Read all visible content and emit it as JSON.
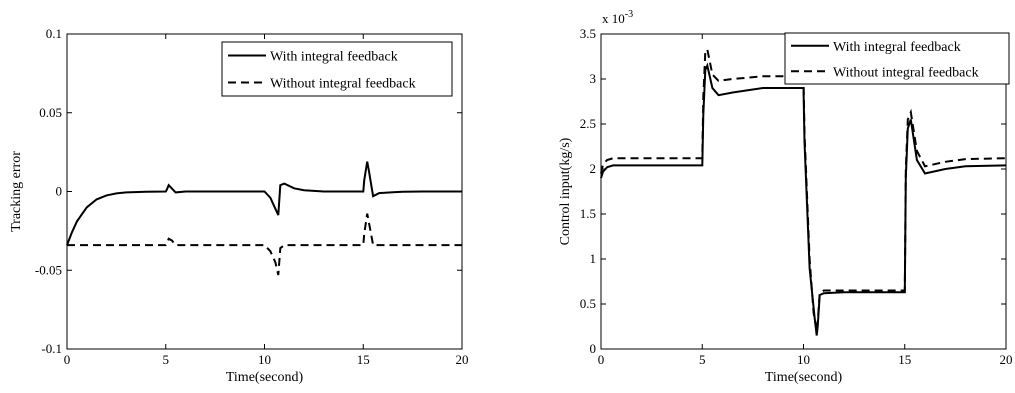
{
  "chart_data": [
    {
      "type": "line",
      "title": "",
      "xlabel": "Time(second)",
      "ylabel": "Tracking error",
      "xlim": [
        0,
        20
      ],
      "ylim": [
        -0.1,
        0.1
      ],
      "x_ticks": [
        "0",
        "5",
        "10",
        "15",
        "20"
      ],
      "y_ticks": [
        "-0.1",
        "-0.05",
        "0",
        "0.05",
        "0.1"
      ],
      "x_tick_values": [
        0,
        5,
        10,
        15,
        20
      ],
      "y_tick_values": [
        -0.1,
        -0.05,
        0,
        0.05,
        0.1
      ],
      "grid": false,
      "legend_position": "top-right",
      "series": [
        {
          "name": "With integral feedback",
          "style": "solid",
          "x": [
            0,
            0.25,
            0.5,
            1,
            1.5,
            2,
            2.5,
            3,
            4,
            5,
            5.05,
            5.15,
            5.3,
            5.5,
            6,
            8,
            10,
            10.3,
            10.55,
            10.7,
            10.8,
            11,
            11.5,
            12,
            13,
            15,
            15.05,
            15.2,
            15.3,
            15.5,
            15.8,
            16.5,
            17,
            18,
            20
          ],
          "y": [
            -0.034,
            -0.026,
            -0.019,
            -0.01,
            -0.005,
            -0.0025,
            -0.0012,
            -0.0006,
            -0.0001,
            0,
            0.001,
            0.004,
            0.002,
            -0.0006,
            0,
            0,
            0,
            -0.004,
            -0.011,
            -0.015,
            0.004,
            0.005,
            0.002,
            0.0008,
            0,
            0,
            0.007,
            0.019,
            0.012,
            -0.003,
            -0.001,
            -0.0005,
            -0.0002,
            0,
            0
          ]
        },
        {
          "name": "Without integral feedback",
          "style": "dashed",
          "x": [
            0,
            5,
            5.05,
            5.15,
            5.3,
            5.5,
            10,
            10.3,
            10.55,
            10.7,
            10.8,
            11,
            15,
            15.05,
            15.2,
            15.35,
            15.5,
            20
          ],
          "y": [
            -0.034,
            -0.034,
            -0.033,
            -0.03,
            -0.031,
            -0.034,
            -0.034,
            -0.038,
            -0.045,
            -0.053,
            -0.036,
            -0.034,
            -0.034,
            -0.027,
            -0.014,
            -0.024,
            -0.034,
            -0.034
          ]
        }
      ]
    },
    {
      "type": "line",
      "title": "",
      "xlabel": "Time(second)",
      "ylabel": "Control input(kg/s)",
      "y_multiplier_text": "x 10",
      "y_multiplier_exponent": "-3",
      "xlim": [
        0,
        20
      ],
      "ylim": [
        0,
        3.5
      ],
      "x_ticks": [
        "0",
        "5",
        "10",
        "15",
        "20"
      ],
      "y_ticks": [
        "0",
        "0.5",
        "1",
        "1.5",
        "2",
        "2.5",
        "3",
        "3.5"
      ],
      "x_tick_values": [
        0,
        5,
        10,
        15,
        20
      ],
      "y_tick_values": [
        0,
        0.5,
        1,
        1.5,
        2,
        2.5,
        3,
        3.5
      ],
      "grid": false,
      "legend_position": "top-right",
      "series": [
        {
          "name": "With integral feedback",
          "style": "solid",
          "x": [
            0,
            0.1,
            0.3,
            0.6,
            1,
            5,
            5.05,
            5.15,
            5.25,
            5.5,
            5.8,
            6.5,
            8,
            10,
            10.05,
            10.3,
            10.55,
            10.65,
            10.7,
            10.8,
            11,
            12,
            15,
            15.05,
            15.15,
            15.3,
            15.6,
            16,
            17,
            18,
            20
          ],
          "y": [
            1.9,
            1.97,
            2.02,
            2.04,
            2.04,
            2.04,
            2.6,
            3.1,
            3.15,
            2.9,
            2.82,
            2.85,
            2.9,
            2.9,
            2.3,
            0.9,
            0.35,
            0.15,
            0.25,
            0.6,
            0.62,
            0.63,
            0.63,
            1.9,
            2.45,
            2.55,
            2.1,
            1.95,
            2.0,
            2.03,
            2.04
          ]
        },
        {
          "name": "Without integral feedback",
          "style": "dashed",
          "x": [
            0,
            0.1,
            0.3,
            0.6,
            1,
            5,
            5.05,
            5.15,
            5.25,
            5.5,
            5.8,
            6.5,
            8,
            10,
            10.05,
            10.3,
            10.5,
            10.65,
            10.7,
            10.8,
            11,
            12,
            15,
            15.05,
            15.15,
            15.3,
            15.6,
            16,
            17,
            18,
            20
          ],
          "y": [
            1.95,
            2.05,
            2.1,
            2.12,
            2.12,
            2.12,
            2.8,
            3.3,
            3.33,
            3.05,
            2.98,
            3.0,
            3.03,
            3.03,
            2.4,
            1.0,
            0.4,
            0.2,
            0.3,
            0.62,
            0.65,
            0.65,
            0.65,
            2.0,
            2.55,
            2.63,
            2.2,
            2.03,
            2.08,
            2.11,
            2.12
          ]
        }
      ]
    }
  ]
}
